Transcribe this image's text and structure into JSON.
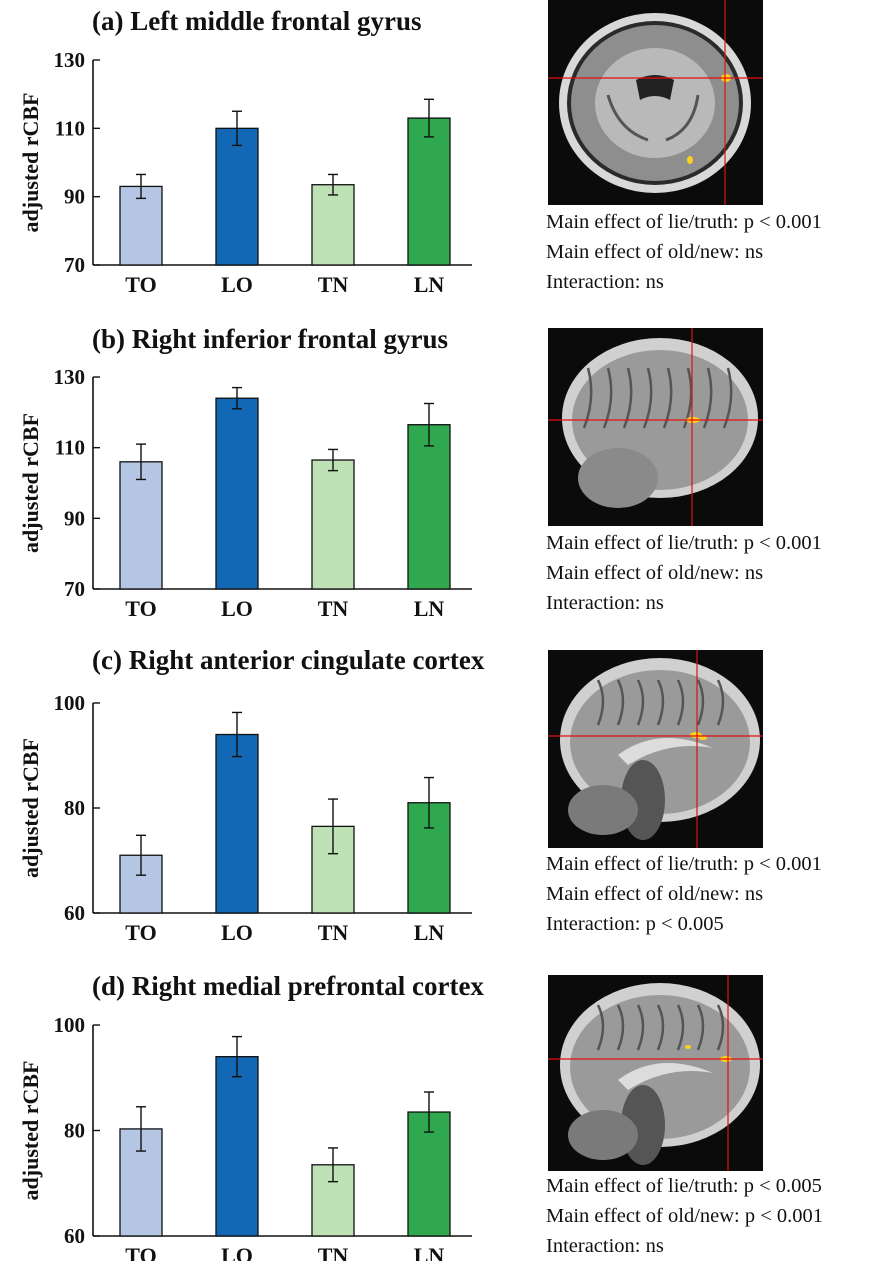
{
  "colors": {
    "TO": "#b4c6e3",
    "LO": "#1268b4",
    "TN": "#bfe1b6",
    "LN": "#2fa84f",
    "crosshair": "#e01010",
    "activation": "#ffd21a"
  },
  "panels": [
    {
      "title": "(a) Left middle frontal gyrus",
      "stats": [
        "Main effect of lie/truth: p < 0.001",
        "Main effect of old/new: ns",
        "Interaction: ns"
      ],
      "brain_view": "axial",
      "chart_data": {
        "type": "bar",
        "categories": [
          "TO",
          "LO",
          "TN",
          "LN"
        ],
        "values": [
          93,
          110,
          93.5,
          113
        ],
        "errors": [
          3.5,
          5,
          3,
          5.5
        ],
        "ylabel": "adjusted rCBF",
        "ylim": [
          70,
          130
        ],
        "yticks": [
          70,
          90,
          110,
          130
        ]
      }
    },
    {
      "title": "(b) Right inferior frontal gyrus",
      "stats": [
        "Main effect of lie/truth: p < 0.001",
        "Main effect of old/new: ns",
        "Interaction: ns"
      ],
      "brain_view": "sagittal-lateral",
      "chart_data": {
        "type": "bar",
        "categories": [
          "TO",
          "LO",
          "TN",
          "LN"
        ],
        "values": [
          106,
          124,
          106.5,
          116.5
        ],
        "errors": [
          5,
          3,
          3,
          6
        ],
        "ylabel": "adjusted rCBF",
        "ylim": [
          70,
          130
        ],
        "yticks": [
          70,
          90,
          110,
          130
        ]
      }
    },
    {
      "title": "(c) Right anterior cingulate cortex",
      "stats": [
        "Main effect of lie/truth: p < 0.001",
        "Main effect of old/new: ns",
        "Interaction: p < 0.005"
      ],
      "brain_view": "sagittal-medial",
      "chart_data": {
        "type": "bar",
        "categories": [
          "TO",
          "LO",
          "TN",
          "LN"
        ],
        "values": [
          71,
          94,
          76.5,
          81
        ],
        "errors": [
          3.8,
          4.2,
          5.2,
          4.8
        ],
        "ylabel": "adjusted rCBF",
        "ylim": [
          60,
          100
        ],
        "yticks": [
          60,
          80,
          100
        ]
      }
    },
    {
      "title": "(d) Right medial prefrontal cortex",
      "stats": [
        "Main effect of lie/truth: p < 0.005",
        "Main effect of old/new: p < 0.001",
        "Interaction: ns"
      ],
      "brain_view": "sagittal-medial",
      "chart_data": {
        "type": "bar",
        "categories": [
          "TO",
          "LO",
          "TN",
          "LN"
        ],
        "values": [
          80.3,
          94,
          73.5,
          83.5
        ],
        "errors": [
          4.2,
          3.8,
          3.2,
          3.8
        ],
        "ylabel": "adjusted rCBF",
        "ylim": [
          60,
          100
        ],
        "yticks": [
          60,
          80,
          100
        ]
      }
    }
  ]
}
